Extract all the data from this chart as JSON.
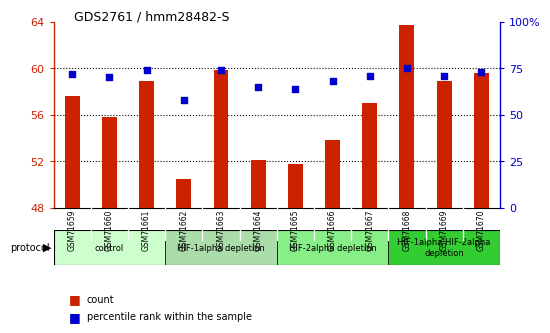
{
  "title": "GDS2761 / hmm28482-S",
  "samples": [
    "GSM71659",
    "GSM71660",
    "GSM71661",
    "GSM71662",
    "GSM71663",
    "GSM71664",
    "GSM71665",
    "GSM71666",
    "GSM71667",
    "GSM71668",
    "GSM71669",
    "GSM71670"
  ],
  "counts": [
    57.6,
    55.8,
    58.9,
    50.5,
    59.8,
    52.1,
    51.8,
    53.8,
    57.0,
    63.7,
    58.9,
    59.6
  ],
  "percentiles": [
    72,
    70,
    74,
    58,
    74,
    65,
    64,
    68,
    71,
    75,
    71,
    73
  ],
  "ylim_left": [
    48,
    64
  ],
  "ylim_right": [
    0,
    100
  ],
  "yticks_left": [
    48,
    52,
    56,
    60,
    64
  ],
  "yticks_right": [
    0,
    25,
    50,
    75,
    100
  ],
  "bar_color": "#cc2200",
  "dot_color": "#0000cc",
  "ylabel_left_color": "#cc2200",
  "ylabel_right_color": "#0000cc",
  "plot_bg_color": "#ffffff",
  "tick_label_area_color": "#d8d8d8",
  "protocol_groups": [
    {
      "label": "control",
      "start": 0,
      "end": 2,
      "color": "#ccffcc"
    },
    {
      "label": "HIF-1alpha depletion",
      "start": 3,
      "end": 5,
      "color": "#aaddaa"
    },
    {
      "label": "HIF-2alpha depletion",
      "start": 6,
      "end": 8,
      "color": "#88ee88"
    },
    {
      "label": "HIF-1alpha HIF-2alpha\ndepletion",
      "start": 9,
      "end": 11,
      "color": "#33cc33"
    }
  ],
  "bar_width": 0.4,
  "dot_size": 22
}
